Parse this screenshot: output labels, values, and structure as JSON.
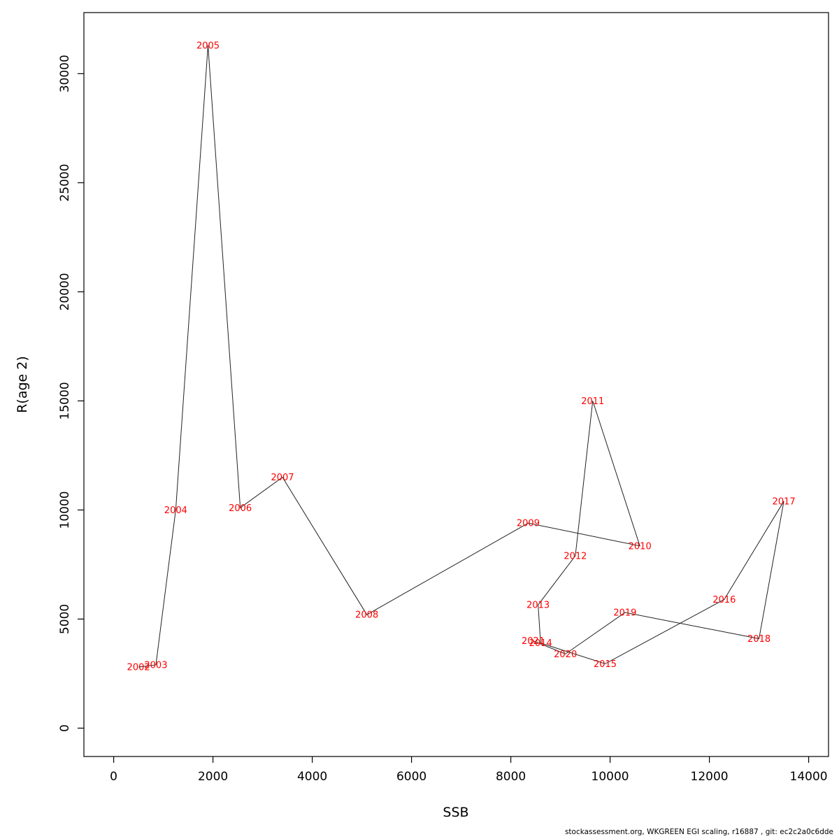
{
  "chart_data": {
    "type": "scatter",
    "title": "",
    "xlabel": "SSB",
    "ylabel": "R(age 2)",
    "grid": false,
    "legend": "none",
    "x_ticks": [
      0,
      2000,
      4000,
      6000,
      8000,
      10000,
      12000,
      14000
    ],
    "y_ticks": [
      0,
      5000,
      10000,
      15000,
      20000,
      25000,
      30000
    ],
    "x_display_range": [
      -600,
      14400
    ],
    "y_display_range": [
      -1300,
      32800
    ],
    "line_color": "#222222",
    "point_label_color": "#ff0000",
    "series": [
      {
        "name": "recruitment-vs-ssb",
        "connected": true,
        "points": [
          {
            "year": "2002",
            "ssb": 500,
            "r": 2800
          },
          {
            "year": "2003",
            "ssb": 850,
            "r": 2900
          },
          {
            "year": "2004",
            "ssb": 1250,
            "r": 10000
          },
          {
            "year": "2005",
            "ssb": 1900,
            "r": 31300
          },
          {
            "year": "2006",
            "ssb": 2550,
            "r": 10100
          },
          {
            "year": "2007",
            "ssb": 3400,
            "r": 11500
          },
          {
            "year": "2008",
            "ssb": 5100,
            "r": 5200
          },
          {
            "year": "2009",
            "ssb": 8350,
            "r": 9400
          },
          {
            "year": "2010",
            "ssb": 10600,
            "r": 8350
          },
          {
            "year": "2011",
            "ssb": 9650,
            "r": 15000
          },
          {
            "year": "2012",
            "ssb": 9300,
            "r": 7900
          },
          {
            "year": "2013",
            "ssb": 8550,
            "r": 5650
          },
          {
            "year": "2014",
            "ssb": 8600,
            "r": 3900
          },
          {
            "year": "2015",
            "ssb": 9900,
            "r": 2950
          },
          {
            "year": "2016",
            "ssb": 12300,
            "r": 5900
          },
          {
            "year": "2017",
            "ssb": 13500,
            "r": 10400
          },
          {
            "year": "2018",
            "ssb": 13000,
            "r": 4100
          },
          {
            "year": "2019",
            "ssb": 10300,
            "r": 5300
          },
          {
            "year": "2020",
            "ssb": 9100,
            "r": 3400
          },
          {
            "year": "2021",
            "ssb": 8450,
            "r": 4000
          }
        ]
      }
    ]
  },
  "footer": {
    "credit": "stockassessment.org, WKGREEN EGI scaling, r16887 , git: ec2c2a0c6dde"
  }
}
